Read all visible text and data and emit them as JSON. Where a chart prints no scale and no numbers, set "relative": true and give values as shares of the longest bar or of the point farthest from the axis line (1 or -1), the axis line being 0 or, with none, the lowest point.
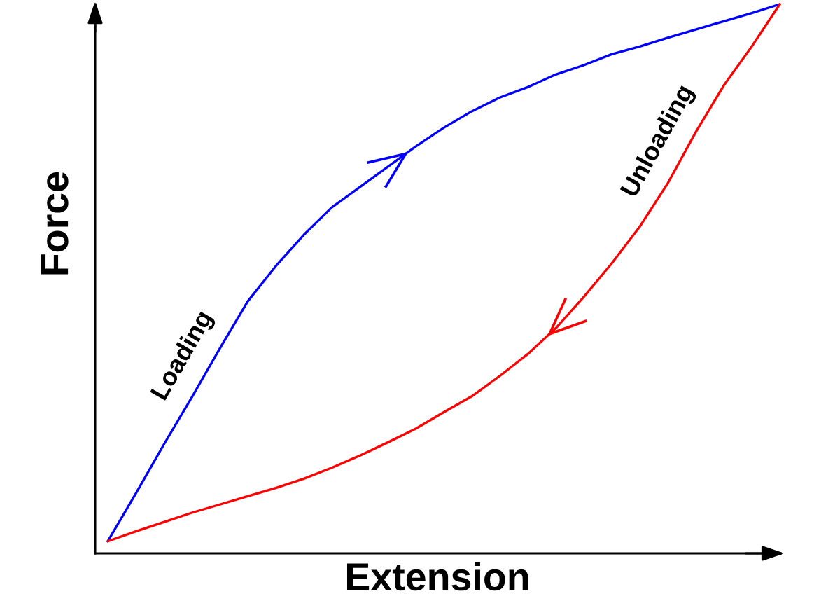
{
  "chart_data": {
    "type": "line",
    "relative": true,
    "xlabel": "Extension",
    "ylabel": "Force",
    "line_style": "solid",
    "categories": [
      null,
      null,
      null,
      null,
      null,
      null,
      null,
      null,
      null,
      null,
      null,
      null,
      null,
      null,
      null,
      null,
      null,
      null,
      null,
      null,
      null,
      null,
      null,
      null,
      null
    ],
    "series": [
      {
        "name": "Loading",
        "color": "#0000ff",
        "values": [
          0.022,
          0.109,
          0.198,
          0.284,
          0.373,
          0.459,
          0.523,
          0.58,
          0.63,
          0.667,
          0.704,
          0.741,
          0.775,
          0.805,
          0.83,
          0.849,
          0.872,
          0.889,
          0.909,
          0.923,
          0.939,
          0.954,
          0.969,
          0.984,
          1.0
        ]
      },
      {
        "name": "Unloading",
        "color": "#ff0000",
        "values": [
          0.022,
          0.04,
          0.057,
          0.074,
          0.089,
          0.104,
          0.119,
          0.136,
          0.156,
          0.178,
          0.202,
          0.227,
          0.257,
          0.286,
          0.323,
          0.363,
          0.41,
          0.467,
          0.528,
          0.595,
          0.674,
          0.767,
          0.852,
          0.923,
          1.0
        ]
      }
    ]
  }
}
